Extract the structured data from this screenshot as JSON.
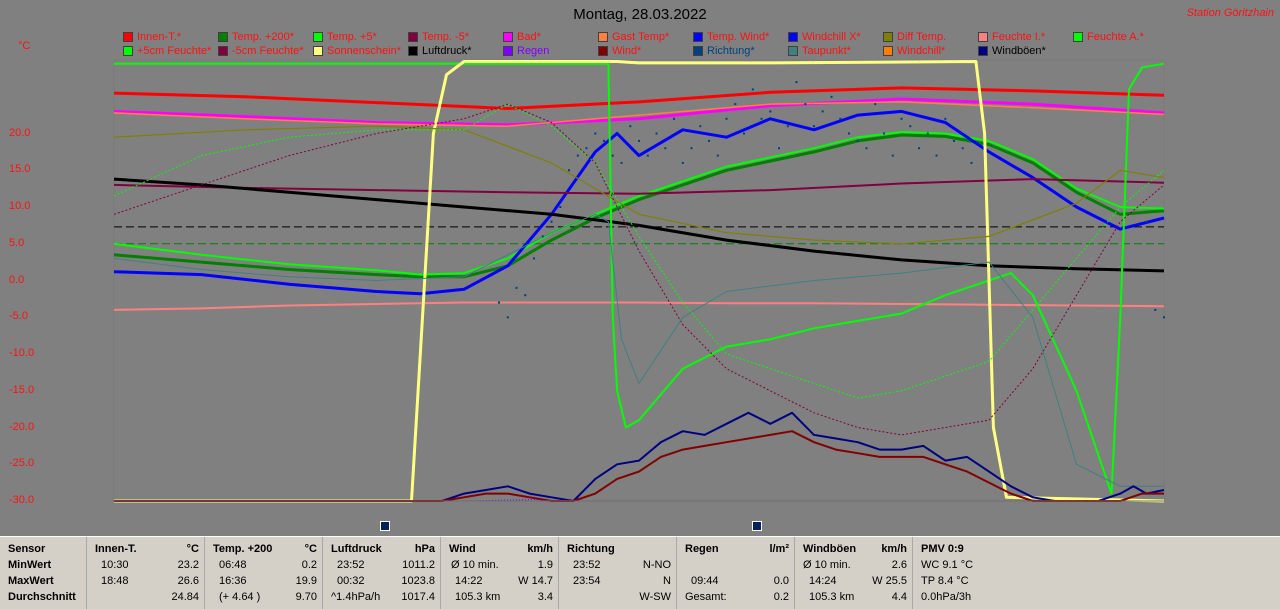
{
  "header": {
    "title": "Montag, 28.03.2022",
    "station": "Station Göritzhain",
    "unit": "°C"
  },
  "legend": [
    {
      "label": "Innen-T.*",
      "color": "#ff0000"
    },
    {
      "label": "Temp. +200*",
      "color": "#008000"
    },
    {
      "label": "Temp. +5*",
      "color": "#00ff00"
    },
    {
      "label": "Temp. -5*",
      "color": "#800040"
    },
    {
      "label": "Bad*",
      "color": "#ff00ff"
    },
    {
      "label": "Gast Temp*",
      "color": "#ff8040"
    },
    {
      "label": "Temp. Wind*",
      "color": "#0000ff"
    },
    {
      "label": "Windchill X*",
      "color": "#0000ff"
    },
    {
      "label": "Diff Temp.",
      "color": "#808000"
    },
    {
      "label": "Feuchte I.*",
      "color": "#ff8080"
    },
    {
      "label": "Feuchte A.*",
      "color": "#00ff00"
    },
    {
      "label": "+5cm Feuchte*",
      "color": "#00ff00"
    },
    {
      "label": "-5cm Feuchte*",
      "color": "#800040"
    },
    {
      "label": "Sonnenschein*",
      "color": "#ffff80"
    },
    {
      "label": "Luftdruck*",
      "color": "#000000"
    },
    {
      "label": "Regen",
      "color": "#8000ff"
    },
    {
      "label": "Wind*",
      "color": "#800000"
    },
    {
      "label": "Richtung*",
      "color": "#004080"
    },
    {
      "label": "Taupunkt*",
      "color": "#408080"
    },
    {
      "label": "Windchill*",
      "color": "#ff8000"
    },
    {
      "label": "Windböen*",
      "color": "#000080"
    }
  ],
  "legend_text_colors": [
    "#ff1010",
    "#ff1010",
    "#ff1010",
    "#ff1010",
    "#ff1010",
    "#ff1010",
    "#ff1010",
    "#ff1010",
    "#ff1010",
    "#ff1010",
    "#ff1010",
    "#ff1010",
    "#ff1010",
    "#ff1010",
    "#000000",
    "#8000ff",
    "#ff1010",
    "#004080",
    "#ff1010",
    "#ff1010",
    "#000000"
  ],
  "chart_data": {
    "type": "line",
    "title": "Montag, 28.03.2022",
    "ylabel": "°C",
    "yticks": [
      20.0,
      15.0,
      10.0,
      5.0,
      0.0,
      -5.0,
      -10.0,
      -15.0,
      -20.0,
      -25.0,
      -30.0
    ],
    "ylim": [
      -30,
      30
    ],
    "xlim": [
      0,
      24
    ],
    "grid": false,
    "legend_position": "top",
    "series": [
      {
        "name": "Innen-T.*",
        "color": "#ff0000",
        "width": 3,
        "x": [
          0,
          3,
          6,
          9,
          12,
          15,
          18,
          21,
          24
        ],
        "y": [
          25.5,
          25.0,
          24.2,
          23.4,
          24.3,
          25.6,
          26.2,
          25.8,
          25.2
        ]
      },
      {
        "name": "Bad*",
        "color": "#ff00ff",
        "width": 3,
        "x": [
          0,
          3,
          6,
          9,
          12,
          15,
          18,
          21,
          24
        ],
        "y": [
          23.0,
          22.3,
          21.5,
          21.2,
          22.0,
          23.8,
          24.7,
          24.0,
          22.8
        ]
      },
      {
        "name": "Gast Temp*",
        "color": "#ff8040",
        "width": 1.5,
        "x": [
          0,
          3,
          6,
          9,
          12,
          15,
          18,
          21,
          24
        ],
        "y": [
          22.8,
          22.0,
          21.3,
          21.0,
          22.5,
          24.0,
          24.3,
          23.5,
          22.6
        ]
      },
      {
        "name": "Temp. +200*",
        "color": "#008000",
        "width": 3,
        "x": [
          0,
          2,
          4,
          6,
          7,
          8,
          9,
          10,
          11,
          12,
          14,
          16,
          17,
          18,
          19,
          20,
          21,
          22,
          23,
          24
        ],
        "y": [
          3.5,
          2.5,
          1.5,
          0.8,
          0.5,
          0.5,
          2.0,
          5.5,
          8.5,
          11.0,
          15.0,
          17.5,
          19.0,
          19.8,
          19.6,
          18.5,
          16.0,
          12.0,
          9.0,
          9.5
        ]
      },
      {
        "name": "Temp. +5*",
        "color": "#00ff00",
        "width": 2,
        "x": [
          0,
          2,
          4,
          6,
          7,
          8,
          9,
          10,
          11,
          12,
          14,
          16,
          17,
          18,
          19,
          20,
          21,
          22,
          23,
          24
        ],
        "y": [
          5.0,
          3.5,
          2.2,
          1.4,
          0.8,
          1.0,
          3.0,
          6.5,
          9.0,
          11.5,
          15.5,
          18.0,
          19.5,
          20.2,
          20.0,
          19.0,
          16.5,
          12.5,
          10.0,
          9.8
        ]
      },
      {
        "name": "Temp. Wind*",
        "color": "#0000ff",
        "width": 3,
        "x": [
          0,
          2,
          4,
          6,
          7,
          8,
          9,
          10,
          11,
          11.5,
          12,
          13,
          14,
          15,
          16,
          17,
          18,
          19,
          20,
          21,
          22,
          23,
          24
        ],
        "y": [
          1.2,
          0.8,
          -0.5,
          -1.5,
          -1.8,
          -1.2,
          2.0,
          9.0,
          17.5,
          20.0,
          17.0,
          20.5,
          19.5,
          22.0,
          20.5,
          22.5,
          23.0,
          21.5,
          17.5,
          14.0,
          10.0,
          7.0,
          8.5
        ]
      },
      {
        "name": "Temp. -5*",
        "color": "#800040",
        "width": 2,
        "x": [
          0,
          3,
          6,
          9,
          12,
          15,
          18,
          21,
          24
        ],
        "y": [
          13.0,
          12.6,
          12.3,
          12.0,
          11.8,
          12.3,
          13.2,
          13.8,
          13.3
        ]
      },
      {
        "name": "Luftdruck*",
        "color": "#000000",
        "width": 3,
        "x": [
          0,
          2,
          4,
          6,
          8,
          10,
          12,
          14,
          16,
          18,
          20,
          22,
          24
        ],
        "y": [
          13.8,
          13.0,
          12.0,
          11.0,
          10.0,
          9.0,
          7.5,
          5.5,
          4.0,
          2.8,
          2.0,
          1.6,
          1.3
        ]
      },
      {
        "name": "Feuchte I.*",
        "color": "#ff8080",
        "width": 2,
        "x": [
          0,
          2,
          4,
          6,
          8,
          10,
          12,
          14,
          16,
          18,
          20,
          22,
          24
        ],
        "y": [
          -4.0,
          -3.8,
          -3.4,
          -3.2,
          -3.0,
          -3.0,
          -3.0,
          -3.1,
          -3.1,
          -3.2,
          -3.3,
          -3.4,
          -3.5
        ]
      },
      {
        "name": "Feuchte A.*",
        "color": "#00ff00",
        "width": 2,
        "x": [
          0,
          11.3,
          11.4,
          11.5,
          11.7,
          12,
          13,
          14,
          15,
          16,
          17,
          18,
          19,
          20,
          20.5,
          21,
          22,
          22.8,
          23,
          23.2,
          23.5,
          24
        ],
        "y": [
          29.5,
          29.5,
          -5.0,
          -15.0,
          -20.0,
          -19.0,
          -12.0,
          -9.0,
          -8.0,
          -6.5,
          -5.5,
          -4.5,
          -2.0,
          0.0,
          1.0,
          -2.0,
          -15.0,
          -29.0,
          -5.0,
          26.0,
          29.0,
          29.5
        ]
      },
      {
        "name": "Sonnenschein*",
        "color": "#ffff80",
        "width": 3,
        "x": [
          0,
          6.8,
          7.0,
          7.3,
          7.6,
          8.0,
          11.5,
          12.0,
          15.0,
          19.7,
          19.9,
          20.1,
          20.4,
          24
        ],
        "y": [
          -30,
          -30,
          -10,
          20,
          28,
          29.8,
          29.8,
          29.6,
          29.6,
          29.8,
          20,
          -20,
          -29.5,
          -30
        ]
      },
      {
        "name": "Diff Temp.",
        "color": "#808000",
        "width": 1.2,
        "x": [
          0,
          3,
          6,
          8,
          10,
          12,
          14,
          16,
          18,
          20,
          22,
          23,
          24
        ],
        "y": [
          19.5,
          20.5,
          21.0,
          20.5,
          16.0,
          9.0,
          6.5,
          5.5,
          5.0,
          6.0,
          10.5,
          15.0,
          14.0
        ]
      },
      {
        "name": "+5cm Feuchte*",
        "color": "#00ff00",
        "width": 1,
        "dash": "2,2",
        "x": [
          0,
          2,
          4,
          6,
          8,
          9,
          10,
          11,
          12,
          13,
          14,
          16,
          17,
          18,
          20,
          21,
          22,
          23,
          24
        ],
        "y": [
          11.5,
          17.0,
          19.5,
          20.5,
          20.5,
          24.0,
          21.0,
          16.0,
          6.0,
          -3.0,
          -10.0,
          -14.0,
          -16.0,
          -15.0,
          -11.0,
          -4.0,
          3.0,
          10.0,
          15.0
        ]
      },
      {
        "name": "-5cm Feuchte*",
        "color": "#800040",
        "width": 1,
        "dash": "2,2",
        "x": [
          0,
          2,
          4,
          6,
          8,
          9,
          10,
          11,
          12,
          13,
          14,
          16,
          17,
          18,
          20,
          21,
          22,
          23,
          24
        ],
        "y": [
          9.0,
          13.0,
          17.0,
          20.0,
          22.0,
          24.0,
          21.5,
          16.0,
          4.0,
          -6.0,
          -12.0,
          -18.0,
          -20.0,
          -21.0,
          -19.0,
          -12.0,
          -2.0,
          8.0,
          13.0
        ]
      },
      {
        "name": "Taupunkt*",
        "color": "#408080",
        "width": 1,
        "x": [
          0,
          2,
          4,
          6,
          8,
          10,
          11,
          11.3,
          11.6,
          12,
          13,
          14,
          16,
          18,
          20,
          21,
          22,
          23,
          24
        ],
        "y": [
          3.0,
          1.5,
          0.5,
          0.0,
          0.5,
          6.5,
          9.0,
          8.0,
          -8.0,
          -14.0,
          -5.0,
          -1.5,
          0.0,
          1.0,
          2.5,
          -5.0,
          -25.0,
          -28.0,
          -28.0
        ]
      },
      {
        "name": "Windchill X*",
        "color": "#0000ff",
        "width": 1,
        "x": [
          0,
          5,
          10,
          15,
          20,
          24
        ],
        "y": [
          -30,
          -30,
          -30,
          -30,
          -30,
          -30
        ]
      },
      {
        "name": "Windböen*",
        "color": "#000080",
        "width": 2,
        "x": [
          0,
          7.5,
          8.0,
          8.5,
          9.0,
          9.5,
          10.0,
          10.5,
          11.0,
          11.5,
          12.0,
          12.5,
          13.0,
          13.5,
          14.0,
          14.5,
          15.0,
          15.5,
          16.0,
          16.5,
          17.0,
          17.5,
          18.0,
          18.5,
          19.0,
          19.5,
          20.0,
          20.5,
          21.0,
          21.5,
          22.0,
          22.5,
          23.0,
          23.3,
          23.6,
          24
        ],
        "y": [
          -30,
          -30,
          -29.0,
          -28.5,
          -28.0,
          -29.0,
          -29.5,
          -30,
          -27.0,
          -25.0,
          -24.5,
          -22.0,
          -20.5,
          -21.0,
          -19.5,
          -18.0,
          -19.5,
          -18.0,
          -21.0,
          -21.5,
          -22.0,
          -23.0,
          -23.0,
          -22.5,
          -24.5,
          -24.0,
          -26.0,
          -28.0,
          -29.5,
          -30,
          -30,
          -30,
          -29.0,
          -28.0,
          -29.0,
          -28.5
        ]
      },
      {
        "name": "Wind*",
        "color": "#800000",
        "width": 2,
        "x": [
          0,
          7.5,
          8.0,
          8.5,
          9.0,
          9.5,
          10.0,
          10.5,
          11.0,
          11.5,
          12.0,
          12.5,
          13.0,
          13.5,
          14.0,
          14.5,
          15.0,
          15.5,
          16.0,
          16.5,
          17.0,
          17.5,
          18.0,
          18.5,
          19.0,
          19.5,
          20.0,
          20.5,
          21.0,
          22,
          23,
          23.5,
          24
        ],
        "y": [
          -30,
          -30,
          -29.5,
          -29.0,
          -29.0,
          -29.5,
          -30,
          -30,
          -29.0,
          -27.0,
          -26.0,
          -24.0,
          -23.0,
          -22.5,
          -22.0,
          -21.5,
          -21.0,
          -20.5,
          -22.0,
          -23.0,
          -23.5,
          -24.0,
          -24.0,
          -24.0,
          -25.0,
          -26.0,
          -27.5,
          -29.0,
          -30,
          -30,
          -30,
          -29.0,
          -29.0
        ]
      },
      {
        "name": "Regen",
        "color": "#8000ff",
        "width": 1,
        "dash": "1,2",
        "x": [
          0,
          8,
          9.6,
          10.0,
          24
        ],
        "y": [
          -30,
          -30,
          -29.8,
          -30,
          -30
        ]
      }
    ],
    "reference_lines": [
      {
        "y": 7.3,
        "color": "#000000",
        "dash": "8,4"
      },
      {
        "y": 5.0,
        "color": "#008000",
        "dash": "8,4"
      }
    ],
    "scatter_series": [
      {
        "name": "Richtung*",
        "color": "#004080",
        "x": [
          8.8,
          9.0,
          9.2,
          9.4,
          9.6,
          9.8,
          10.0,
          10.2,
          10.4,
          10.6,
          10.8,
          11.0,
          11.2,
          11.4,
          11.6,
          11.8,
          12.0,
          12.2,
          12.4,
          12.6,
          12.8,
          13.0,
          13.2,
          13.4,
          13.6,
          13.8,
          14.0,
          14.2,
          14.4,
          14.6,
          14.8,
          15.0,
          15.2,
          15.4,
          15.6,
          15.8,
          16.0,
          16.2,
          16.4,
          16.6,
          16.8,
          17.0,
          17.2,
          17.4,
          17.6,
          17.8,
          18.0,
          18.2,
          18.4,
          18.6,
          18.8,
          19.0,
          19.2,
          19.4,
          19.6,
          23.6,
          23.8,
          24.0
        ],
        "y": [
          -3,
          -5,
          -1,
          -2,
          3,
          6,
          8,
          10,
          15,
          17,
          18,
          20,
          19,
          17,
          16,
          21,
          19,
          17,
          20,
          18,
          22,
          16,
          18,
          21,
          19,
          17,
          22,
          24,
          20,
          26,
          22,
          23,
          18,
          21,
          27,
          24,
          21,
          23,
          25,
          22,
          20,
          19,
          18,
          24,
          20,
          17,
          22,
          21,
          18,
          20,
          17,
          22,
          19,
          18,
          16,
          8,
          -4,
          -5
        ]
      }
    ],
    "markers_x": [
      6.2,
      14.7
    ]
  },
  "table": {
    "col1": {
      "head": "Sensor",
      "rows": [
        "MinWert",
        "MaxWert",
        "Durchschnitt"
      ]
    },
    "col2": {
      "head": "Innen-T.",
      "unit": "°C",
      "t": [
        "10:30",
        "18:48",
        ""
      ],
      "v": [
        "23.2",
        "26.6",
        "24.84"
      ]
    },
    "col3": {
      "head": "Temp. +200",
      "unit": "°C",
      "t": [
        "06:48",
        "16:36",
        "(+ 4.64 )"
      ],
      "v": [
        "0.2",
        "19.9",
        "9.70"
      ]
    },
    "col4": {
      "head": "Luftdruck",
      "unit": "hPa",
      "t": [
        "23:52",
        "00:32",
        "^1.4hPa/h"
      ],
      "v": [
        "1011.2",
        "1023.8",
        "1017.4"
      ]
    },
    "col5": {
      "head": "Wind",
      "unit": "km/h",
      "t": [
        "Ø 10 min.",
        "14:22",
        "105.3 km"
      ],
      "v": [
        "1.9",
        "W 14.7",
        "3.4"
      ]
    },
    "col6": {
      "head": "Richtung",
      "unit": "",
      "t": [
        "23:52",
        "23:54",
        ""
      ],
      "v": [
        "N-NO",
        "N",
        "W-SW"
      ]
    },
    "col7": {
      "head": "Regen",
      "unit": "l/m²",
      "t": [
        "",
        "09:44",
        "Gesamt:"
      ],
      "v": [
        "",
        "0.0",
        "0.2"
      ]
    },
    "col8": {
      "head": "Windböen",
      "unit": "km/h",
      "t": [
        "Ø 10 min.",
        "14:24",
        "105.3 km"
      ],
      "v": [
        "2.6",
        "W 25.5",
        "4.4"
      ]
    },
    "col9": {
      "head": "PMV 0:9",
      "rows": [
        "WC 9.1 °C",
        "TP 8.4 °C",
        "0.0hPa/3h"
      ]
    }
  }
}
